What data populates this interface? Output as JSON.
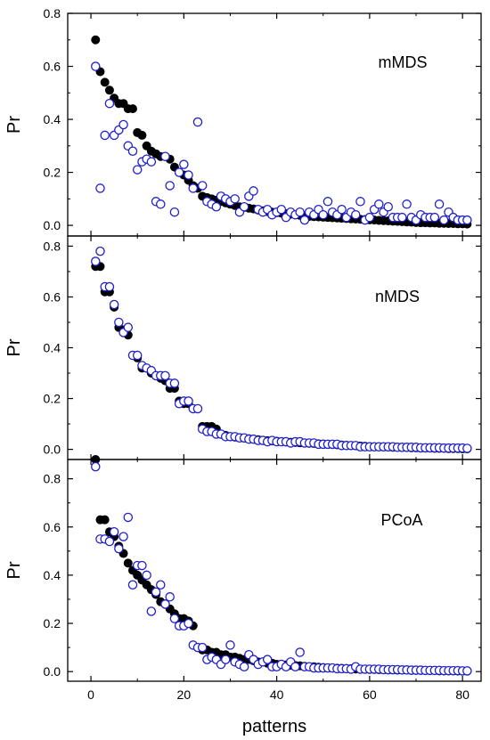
{
  "chart_data": [
    {
      "type": "scatter",
      "panel_label": "mMDS",
      "xlabel": "",
      "ylabel": "Pr",
      "xlim": [
        -5,
        84
      ],
      "ylim": [
        -0.04,
        0.8
      ],
      "y_ticks": [
        0.0,
        0.2,
        0.4,
        0.6,
        0.8
      ],
      "y_tick_labels": [
        "0.0",
        "0.2",
        "0.4",
        "0.6",
        "0.8"
      ],
      "grid": false,
      "series": [
        {
          "marker": "filled",
          "color": "#000000",
          "x": [
            1,
            2,
            3,
            4,
            5,
            6,
            7,
            8,
            9,
            10,
            11,
            12,
            13,
            14,
            15,
            16,
            17,
            18,
            19,
            20,
            21,
            22,
            23,
            24,
            25,
            26,
            27,
            28,
            29,
            30,
            31,
            32,
            33,
            34,
            35,
            36,
            37,
            38,
            39,
            40,
            41,
            42,
            43,
            44,
            45,
            46,
            47,
            48,
            49,
            50,
            51,
            52,
            53,
            54,
            55,
            56,
            57,
            58,
            59,
            60,
            61,
            62,
            63,
            64,
            65,
            66,
            67,
            68,
            69,
            70,
            71,
            72,
            73,
            74,
            75,
            76,
            77,
            78,
            79,
            80,
            81
          ],
          "y": [
            0.7,
            0.58,
            0.54,
            0.51,
            0.48,
            0.46,
            0.46,
            0.44,
            0.44,
            0.35,
            0.34,
            0.3,
            0.28,
            0.27,
            0.26,
            0.26,
            0.25,
            0.22,
            0.2,
            0.19,
            0.17,
            0.15,
            0.14,
            0.11,
            0.105,
            0.1,
            0.095,
            0.09,
            0.085,
            0.08,
            0.075,
            0.07,
            0.068,
            0.065,
            0.062,
            0.058,
            0.055,
            0.052,
            0.05,
            0.048,
            0.046,
            0.044,
            0.042,
            0.04,
            0.038,
            0.036,
            0.034,
            0.033,
            0.032,
            0.031,
            0.03,
            0.029,
            0.028,
            0.027,
            0.026,
            0.025,
            0.024,
            0.023,
            0.022,
            0.021,
            0.02,
            0.019,
            0.018,
            0.017,
            0.016,
            0.015,
            0.014,
            0.013,
            0.012,
            0.011,
            0.01,
            0.01,
            0.009,
            0.009,
            0.008,
            0.008,
            0.007,
            0.007,
            0.006,
            0.006,
            0.005
          ]
        },
        {
          "marker": "open",
          "color": "#1f1fcc",
          "x": [
            1,
            2,
            3,
            4,
            5,
            6,
            7,
            8,
            9,
            10,
            11,
            12,
            13,
            14,
            15,
            16,
            17,
            18,
            19,
            20,
            21,
            22,
            23,
            24,
            25,
            26,
            27,
            28,
            29,
            30,
            31,
            32,
            33,
            34,
            35,
            36,
            37,
            38,
            39,
            40,
            41,
            42,
            43,
            44,
            45,
            46,
            47,
            48,
            49,
            50,
            51,
            52,
            53,
            54,
            55,
            56,
            57,
            58,
            59,
            60,
            61,
            62,
            63,
            64,
            65,
            66,
            67,
            68,
            69,
            70,
            71,
            72,
            73,
            74,
            75,
            76,
            77,
            78,
            79,
            80,
            81
          ],
          "y": [
            0.6,
            0.14,
            0.34,
            0.46,
            0.34,
            0.36,
            0.38,
            0.3,
            0.28,
            0.21,
            0.24,
            0.25,
            0.24,
            0.09,
            0.08,
            0.26,
            0.15,
            0.05,
            0.2,
            0.23,
            0.19,
            0.14,
            0.39,
            0.15,
            0.09,
            0.08,
            0.07,
            0.11,
            0.1,
            0.09,
            0.1,
            0.05,
            0.07,
            0.11,
            0.13,
            0.06,
            0.05,
            0.06,
            0.04,
            0.05,
            0.06,
            0.03,
            0.05,
            0.04,
            0.05,
            0.02,
            0.05,
            0.04,
            0.06,
            0.04,
            0.09,
            0.05,
            0.04,
            0.06,
            0.03,
            0.05,
            0.04,
            0.09,
            0.02,
            0.03,
            0.06,
            0.08,
            0.05,
            0.07,
            0.03,
            0.03,
            0.03,
            0.08,
            0.03,
            0.02,
            0.04,
            0.03,
            0.03,
            0.03,
            0.08,
            0.02,
            0.05,
            0.03,
            0.02,
            0.02,
            0.02
          ]
        }
      ]
    },
    {
      "type": "scatter",
      "panel_label": "nMDS",
      "xlabel": "",
      "ylabel": "Pr",
      "xlim": [
        -5,
        84
      ],
      "ylim": [
        -0.04,
        0.84
      ],
      "y_ticks": [
        0.0,
        0.2,
        0.4,
        0.6,
        0.8
      ],
      "y_tick_labels": [
        "0.0",
        "0.2",
        "0.4",
        "0.6",
        "0.8"
      ],
      "grid": false,
      "series": [
        {
          "marker": "filled",
          "color": "#000000",
          "x": [
            1,
            2,
            3,
            4,
            5,
            6,
            7,
            8,
            9,
            10,
            11,
            12,
            13,
            14,
            15,
            16,
            17,
            18,
            19,
            20,
            21,
            22,
            23,
            24,
            25,
            26,
            27,
            28,
            29,
            30,
            31,
            32,
            33,
            34,
            35,
            36,
            37,
            38,
            39,
            40,
            41,
            42,
            43,
            44,
            45,
            46,
            47,
            48,
            49,
            50,
            51,
            52,
            53,
            54,
            55,
            56,
            57,
            58,
            59,
            60,
            61,
            62,
            63,
            64,
            65,
            66,
            67,
            68,
            69,
            70,
            71,
            72,
            73,
            74,
            75,
            76,
            77,
            78,
            79,
            80,
            81
          ],
          "y": [
            0.72,
            0.72,
            0.62,
            0.62,
            0.56,
            0.48,
            0.47,
            0.45,
            0.37,
            0.36,
            0.32,
            0.32,
            0.3,
            0.29,
            0.28,
            0.27,
            0.24,
            0.24,
            0.19,
            0.18,
            0.18,
            0.16,
            0.16,
            0.09,
            0.09,
            0.09,
            0.08,
            0.06,
            0.055,
            0.05,
            0.048,
            0.046,
            0.044,
            0.042,
            0.04,
            0.038,
            0.036,
            0.034,
            0.033,
            0.032,
            0.03,
            0.029,
            0.028,
            0.027,
            0.026,
            0.025,
            0.024,
            0.023,
            0.022,
            0.021,
            0.02,
            0.019,
            0.018,
            0.017,
            0.016,
            0.015,
            0.014,
            0.013,
            0.012,
            0.011,
            0.01,
            0.01,
            0.009,
            0.009,
            0.008,
            0.008,
            0.007,
            0.007,
            0.006,
            0.006,
            0.005,
            0.005,
            0.005,
            0.004,
            0.004,
            0.004,
            0.003,
            0.003,
            0.003,
            0.002,
            0.002
          ]
        },
        {
          "marker": "open",
          "color": "#1f1fcc",
          "x": [
            1,
            2,
            3,
            4,
            5,
            6,
            7,
            8,
            9,
            10,
            11,
            12,
            13,
            14,
            15,
            16,
            17,
            18,
            19,
            20,
            21,
            22,
            23,
            24,
            25,
            26,
            27,
            28,
            29,
            30,
            31,
            32,
            33,
            34,
            35,
            36,
            37,
            38,
            39,
            40,
            41,
            42,
            43,
            44,
            45,
            46,
            47,
            48,
            49,
            50,
            51,
            52,
            53,
            54,
            55,
            56,
            57,
            58,
            59,
            60,
            61,
            62,
            63,
            64,
            65,
            66,
            67,
            68,
            69,
            70,
            71,
            72,
            73,
            74,
            75,
            76,
            77,
            78,
            79,
            80,
            81
          ],
          "y": [
            0.74,
            0.78,
            0.64,
            0.64,
            0.57,
            0.5,
            0.46,
            0.48,
            0.37,
            0.37,
            0.33,
            0.32,
            0.31,
            0.29,
            0.29,
            0.29,
            0.26,
            0.26,
            0.18,
            0.19,
            0.19,
            0.16,
            0.16,
            0.08,
            0.07,
            0.07,
            0.06,
            0.06,
            0.05,
            0.05,
            0.05,
            0.045,
            0.045,
            0.04,
            0.04,
            0.035,
            0.035,
            0.03,
            0.035,
            0.03,
            0.03,
            0.03,
            0.025,
            0.03,
            0.03,
            0.025,
            0.025,
            0.025,
            0.02,
            0.02,
            0.02,
            0.02,
            0.02,
            0.015,
            0.015,
            0.015,
            0.015,
            0.01,
            0.01,
            0.01,
            0.01,
            0.01,
            0.01,
            0.01,
            0.01,
            0.008,
            0.008,
            0.008,
            0.008,
            0.008,
            0.006,
            0.006,
            0.006,
            0.006,
            0.006,
            0.005,
            0.005,
            0.005,
            0.005,
            0.005,
            0.004
          ]
        }
      ]
    },
    {
      "type": "scatter",
      "panel_label": "PCoA",
      "xlabel": "patterns",
      "ylabel": "Pr",
      "xlim": [
        -5,
        84
      ],
      "ylim": [
        -0.04,
        0.88
      ],
      "x_ticks": [
        0,
        20,
        40,
        60,
        80
      ],
      "x_tick_labels": [
        "0",
        "20",
        "40",
        "60",
        "80"
      ],
      "y_ticks": [
        0.0,
        0.2,
        0.4,
        0.6,
        0.8
      ],
      "y_tick_labels": [
        "0.0",
        "0.2",
        "0.4",
        "0.6",
        "0.8"
      ],
      "grid": false,
      "series": [
        {
          "marker": "filled",
          "color": "#000000",
          "x": [
            1,
            2,
            3,
            4,
            5,
            6,
            7,
            8,
            9,
            10,
            11,
            12,
            13,
            14,
            15,
            16,
            17,
            18,
            19,
            20,
            21,
            22,
            23,
            24,
            25,
            26,
            27,
            28,
            29,
            30,
            31,
            32,
            33,
            34,
            35,
            36,
            37,
            38,
            39,
            40,
            41,
            42,
            43,
            44,
            45,
            46,
            47,
            48,
            49,
            50,
            51,
            52,
            53,
            54,
            55,
            56,
            57,
            58,
            59,
            60,
            61,
            62,
            63,
            64,
            65,
            66,
            67,
            68,
            69,
            70,
            71,
            72,
            73,
            74,
            75,
            76,
            77,
            78,
            79,
            80,
            81
          ],
          "y": [
            0.88,
            0.63,
            0.63,
            0.58,
            0.56,
            0.52,
            0.49,
            0.45,
            0.42,
            0.4,
            0.38,
            0.36,
            0.34,
            0.32,
            0.29,
            0.28,
            0.26,
            0.24,
            0.22,
            0.22,
            0.21,
            0.19,
            0.1,
            0.09,
            0.09,
            0.08,
            0.08,
            0.07,
            0.07,
            0.06,
            0.06,
            0.055,
            0.05,
            0.05,
            0.045,
            0.04,
            0.04,
            0.035,
            0.035,
            0.03,
            0.03,
            0.028,
            0.026,
            0.025,
            0.024,
            0.022,
            0.02,
            0.02,
            0.018,
            0.017,
            0.016,
            0.015,
            0.014,
            0.013,
            0.012,
            0.012,
            0.011,
            0.01,
            0.01,
            0.009,
            0.009,
            0.008,
            0.008,
            0.007,
            0.007,
            0.006,
            0.006,
            0.006,
            0.005,
            0.005,
            0.005,
            0.004,
            0.004,
            0.004,
            0.003,
            0.003,
            0.003,
            0.003,
            0.002,
            0.002,
            0.002
          ]
        },
        {
          "marker": "open",
          "color": "#1f1fcc",
          "x": [
            1,
            2,
            3,
            4,
            5,
            6,
            7,
            8,
            9,
            10,
            11,
            12,
            13,
            14,
            15,
            16,
            17,
            18,
            19,
            20,
            21,
            22,
            23,
            24,
            25,
            26,
            27,
            28,
            29,
            30,
            31,
            32,
            33,
            34,
            35,
            36,
            37,
            38,
            39,
            40,
            41,
            42,
            43,
            44,
            45,
            46,
            47,
            48,
            49,
            50,
            51,
            52,
            53,
            54,
            55,
            56,
            57,
            58,
            59,
            60,
            61,
            62,
            63,
            64,
            65,
            66,
            67,
            68,
            69,
            70,
            71,
            72,
            73,
            74,
            75,
            76,
            77,
            78,
            79,
            80,
            81
          ],
          "y": [
            0.85,
            0.55,
            0.55,
            0.54,
            0.58,
            0.51,
            0.56,
            0.64,
            0.36,
            0.44,
            0.44,
            0.4,
            0.25,
            0.33,
            0.36,
            0.28,
            0.31,
            0.22,
            0.19,
            0.19,
            0.2,
            0.11,
            0.1,
            0.1,
            0.05,
            0.06,
            0.05,
            0.03,
            0.05,
            0.11,
            0.04,
            0.03,
            0.02,
            0.07,
            0.05,
            0.03,
            0.04,
            0.05,
            0.02,
            0.02,
            0.03,
            0.02,
            0.04,
            0.02,
            0.08,
            0.02,
            0.02,
            0.015,
            0.015,
            0.015,
            0.015,
            0.015,
            0.012,
            0.012,
            0.012,
            0.01,
            0.02,
            0.01,
            0.01,
            0.01,
            0.01,
            0.01,
            0.008,
            0.008,
            0.008,
            0.008,
            0.007,
            0.007,
            0.006,
            0.006,
            0.006,
            0.005,
            0.005,
            0.005,
            0.005,
            0.004,
            0.004,
            0.004,
            0.004,
            0.003,
            0.003
          ]
        }
      ]
    }
  ]
}
